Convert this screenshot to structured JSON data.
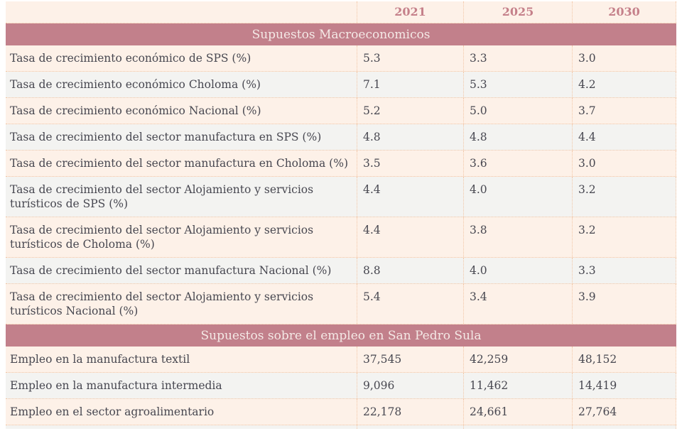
{
  "chart_data": {
    "type": "table",
    "columns": [
      "2021",
      "2025",
      "2030"
    ],
    "sections": [
      {
        "header": "Supuestos Macroeconomicos",
        "rows": [
          [
            "Tasa de crecimiento económico de SPS (%)",
            "5.3",
            "3.3",
            "3.0"
          ],
          [
            "Tasa de crecimiento económico Choloma (%)",
            "7.1",
            "5.3",
            "4.2"
          ],
          [
            "Tasa de crecimiento económico Nacional (%)",
            "5.2",
            "5.0",
            "3.7"
          ],
          [
            "Tasa de crecimiento del sector manufactura en SPS (%)",
            "4.8",
            "4.8",
            "4.4"
          ],
          [
            "Tasa de crecimiento del sector manufactura en Choloma (%)",
            "3.5",
            "3.6",
            "3.0"
          ],
          [
            "Tasa de crecimiento del sector Alojamiento y servicios turísticos de SPS (%)",
            "4.4",
            "4.0",
            "3.2"
          ],
          [
            "Tasa de crecimiento del sector Alojamiento y servicios turísticos de Choloma (%)",
            "4.4",
            "3.8",
            "3.2"
          ],
          [
            "Tasa de crecimiento del sector manufactura Nacional (%)",
            "8.8",
            "4.0",
            "3.3"
          ],
          [
            "Tasa de crecimiento del sector Alojamiento y servicios turísticos Nacional (%)",
            "5.4",
            "3.4",
            "3.9"
          ]
        ]
      },
      {
        "header": "Supuestos sobre el empleo en San Pedro Sula",
        "rows": [
          [
            "Empleo en la manufactura textil",
            "37,545",
            "42,259",
            "48,152"
          ],
          [
            "Empleo en la manufactura intermedia",
            "9,096",
            "11,462",
            "14,419"
          ],
          [
            "Empleo en el sector agroalimentario",
            "22,178",
            "24,661",
            "27,764"
          ]
        ]
      }
    ],
    "layout": {
      "value_alignment": "left",
      "header_alignment": "center",
      "grid": "dotted"
    }
  },
  "theme": {
    "section_bar_bg": "#c2808b",
    "section_bar_text": "#f4e9e6",
    "column_header_text": "#c5808a",
    "row_bg_cream": "#fdf1e8",
    "row_bg_gray": "#f3f3f1",
    "body_text": "#474750",
    "dotted_grid_border": "#f2c5a4",
    "page_bg": "#ffffff"
  }
}
